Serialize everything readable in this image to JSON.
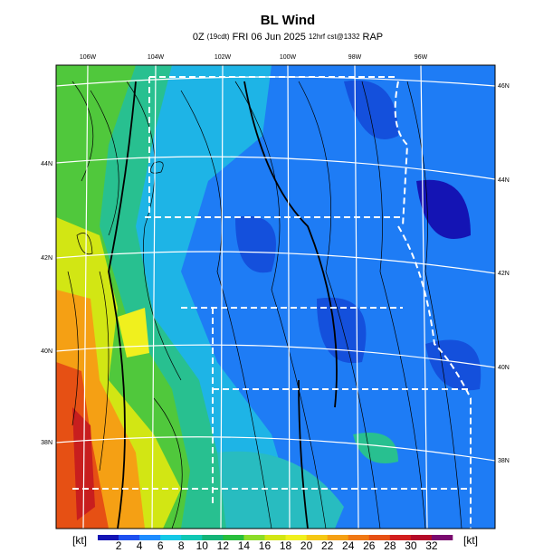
{
  "header": {
    "title": "BL Wind",
    "subtitle": [
      "0Z",
      "(19cdt)",
      "FRI 06 Jun 2025",
      "12hrf cst@1332",
      "RAP"
    ]
  },
  "map": {
    "lon_labels": [
      "106W",
      "104W",
      "102W",
      "100W",
      "98W",
      "96W"
    ],
    "lat_labels_left": [
      "44N",
      "42N",
      "40N",
      "38N"
    ],
    "lat_labels_right": [
      "46N",
      "44N",
      "42N",
      "40N",
      "38N"
    ]
  },
  "colorbar": {
    "unit_left": "[kt]",
    "unit_right": "[kt]",
    "ticks": [
      2,
      4,
      6,
      8,
      10,
      12,
      14,
      16,
      18,
      20,
      22,
      24,
      26,
      28,
      30,
      32
    ],
    "colors": [
      "#1414b4",
      "#1e50f0",
      "#1e8cff",
      "#14c8e6",
      "#10c8b4",
      "#14b478",
      "#28be3c",
      "#8cdc28",
      "#d2e614",
      "#f0f01e",
      "#f5c814",
      "#f5a014",
      "#f07814",
      "#e65014",
      "#d21e1e",
      "#b40a28",
      "#7a0a6e"
    ]
  }
}
